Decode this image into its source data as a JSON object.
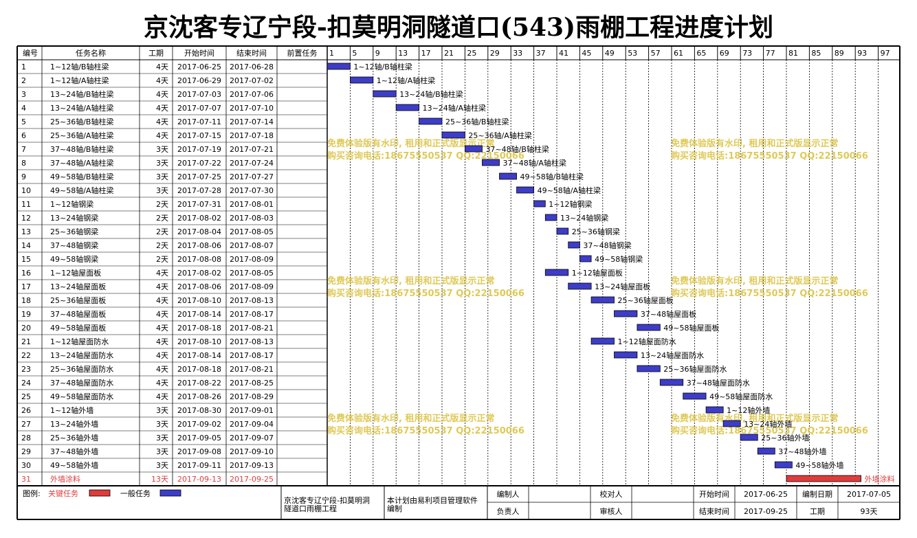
{
  "title": "京沈客专辽宁段-扣莫明洞隧道口(543)雨棚工程进度计划",
  "colors": {
    "normal": "#3d3dc8",
    "critical": "#e03c3c",
    "grid": "#000000",
    "watermark": "#d9bf3a"
  },
  "headers": {
    "id": "编号",
    "name": "任务名称",
    "duration": "工期",
    "start": "开始时间",
    "end": "结束时间",
    "pred": "前置任务"
  },
  "timeline_ticks": [
    "1",
    "5",
    "9",
    "13",
    "17",
    "21",
    "25",
    "29",
    "33",
    "37",
    "41",
    "45",
    "49",
    "53",
    "57",
    "61",
    "65",
    "69",
    "73",
    "77",
    "81",
    "85",
    "89",
    "93",
    "97"
  ],
  "watermark": {
    "line1": "免费体验版有水印, 租用和正式版显示正常",
    "line2": "购买咨询电话:18675550537 QQ:22150066"
  },
  "chart_data": {
    "type": "gantt",
    "x_unit": "day",
    "x_range": [
      1,
      100
    ],
    "tasks": [
      {
        "id": "1",
        "name": "1~12轴/B轴柱梁",
        "duration": "4天",
        "start": "2017-06-25",
        "end": "2017-06-28",
        "start_day": 1,
        "days": 4,
        "critical": false
      },
      {
        "id": "2",
        "name": "1~12轴/A轴柱梁",
        "duration": "4天",
        "start": "2017-06-29",
        "end": "2017-07-02",
        "start_day": 5,
        "days": 4,
        "critical": false
      },
      {
        "id": "3",
        "name": "13~24轴/B轴柱梁",
        "duration": "4天",
        "start": "2017-07-03",
        "end": "2017-07-06",
        "start_day": 9,
        "days": 4,
        "critical": false
      },
      {
        "id": "4",
        "name": "13~24轴/A轴柱梁",
        "duration": "4天",
        "start": "2017-07-07",
        "end": "2017-07-10",
        "start_day": 13,
        "days": 4,
        "critical": false
      },
      {
        "id": "5",
        "name": "25~36轴/B轴柱梁",
        "duration": "4天",
        "start": "2017-07-11",
        "end": "2017-07-14",
        "start_day": 17,
        "days": 4,
        "critical": false
      },
      {
        "id": "6",
        "name": "25~36轴/A轴柱梁",
        "duration": "4天",
        "start": "2017-07-15",
        "end": "2017-07-18",
        "start_day": 21,
        "days": 4,
        "critical": false
      },
      {
        "id": "7",
        "name": "37~48轴/B轴柱梁",
        "duration": "3天",
        "start": "2017-07-19",
        "end": "2017-07-21",
        "start_day": 25,
        "days": 3,
        "critical": false
      },
      {
        "id": "8",
        "name": "37~48轴/A轴柱梁",
        "duration": "3天",
        "start": "2017-07-22",
        "end": "2017-07-24",
        "start_day": 28,
        "days": 3,
        "critical": false
      },
      {
        "id": "9",
        "name": "49~58轴/B轴柱梁",
        "duration": "3天",
        "start": "2017-07-25",
        "end": "2017-07-27",
        "start_day": 31,
        "days": 3,
        "critical": false
      },
      {
        "id": "10",
        "name": "49~58轴/A轴柱梁",
        "duration": "3天",
        "start": "2017-07-28",
        "end": "2017-07-30",
        "start_day": 34,
        "days": 3,
        "critical": false
      },
      {
        "id": "11",
        "name": "1~12轴钢梁",
        "duration": "2天",
        "start": "2017-07-31",
        "end": "2017-08-01",
        "start_day": 37,
        "days": 2,
        "critical": false
      },
      {
        "id": "12",
        "name": "13~24轴钢梁",
        "duration": "2天",
        "start": "2017-08-02",
        "end": "2017-08-03",
        "start_day": 39,
        "days": 2,
        "critical": false
      },
      {
        "id": "13",
        "name": "25~36轴钢梁",
        "duration": "2天",
        "start": "2017-08-04",
        "end": "2017-08-05",
        "start_day": 41,
        "days": 2,
        "critical": false
      },
      {
        "id": "14",
        "name": "37~48轴钢梁",
        "duration": "2天",
        "start": "2017-08-06",
        "end": "2017-08-07",
        "start_day": 43,
        "days": 2,
        "critical": false
      },
      {
        "id": "15",
        "name": "49~58轴钢梁",
        "duration": "2天",
        "start": "2017-08-08",
        "end": "2017-08-09",
        "start_day": 45,
        "days": 2,
        "critical": false
      },
      {
        "id": "16",
        "name": "1~12轴屋面板",
        "duration": "4天",
        "start": "2017-08-02",
        "end": "2017-08-05",
        "start_day": 39,
        "days": 4,
        "critical": false
      },
      {
        "id": "17",
        "name": "13~24轴屋面板",
        "duration": "4天",
        "start": "2017-08-06",
        "end": "2017-08-09",
        "start_day": 43,
        "days": 4,
        "critical": false
      },
      {
        "id": "18",
        "name": "25~36轴屋面板",
        "duration": "4天",
        "start": "2017-08-10",
        "end": "2017-08-13",
        "start_day": 47,
        "days": 4,
        "critical": false
      },
      {
        "id": "19",
        "name": "37~48轴屋面板",
        "duration": "4天",
        "start": "2017-08-14",
        "end": "2017-08-17",
        "start_day": 51,
        "days": 4,
        "critical": false
      },
      {
        "id": "20",
        "name": "49~58轴屋面板",
        "duration": "4天",
        "start": "2017-08-18",
        "end": "2017-08-21",
        "start_day": 55,
        "days": 4,
        "critical": false
      },
      {
        "id": "21",
        "name": "1~12轴屋面防水",
        "duration": "4天",
        "start": "2017-08-10",
        "end": "2017-08-13",
        "start_day": 47,
        "days": 4,
        "critical": false
      },
      {
        "id": "22",
        "name": "13~24轴屋面防水",
        "duration": "4天",
        "start": "2017-08-14",
        "end": "2017-08-17",
        "start_day": 51,
        "days": 4,
        "critical": false
      },
      {
        "id": "23",
        "name": "25~36轴屋面防水",
        "duration": "4天",
        "start": "2017-08-18",
        "end": "2017-08-21",
        "start_day": 55,
        "days": 4,
        "critical": false
      },
      {
        "id": "24",
        "name": "37~48轴屋面防水",
        "duration": "4天",
        "start": "2017-08-22",
        "end": "2017-08-25",
        "start_day": 59,
        "days": 4,
        "critical": false
      },
      {
        "id": "25",
        "name": "49~58轴屋面防水",
        "duration": "4天",
        "start": "2017-08-26",
        "end": "2017-08-29",
        "start_day": 63,
        "days": 4,
        "critical": false
      },
      {
        "id": "26",
        "name": "1~12轴外墙",
        "duration": "3天",
        "start": "2017-08-30",
        "end": "2017-09-01",
        "start_day": 67,
        "days": 3,
        "critical": false
      },
      {
        "id": "27",
        "name": "13~24轴外墙",
        "duration": "3天",
        "start": "2017-09-02",
        "end": "2017-09-04",
        "start_day": 70,
        "days": 3,
        "critical": false
      },
      {
        "id": "28",
        "name": "25~36轴外墙",
        "duration": "3天",
        "start": "2017-09-05",
        "end": "2017-09-07",
        "start_day": 73,
        "days": 3,
        "critical": false
      },
      {
        "id": "29",
        "name": "37~48轴外墙",
        "duration": "3天",
        "start": "2017-09-08",
        "end": "2017-09-10",
        "start_day": 76,
        "days": 3,
        "critical": false
      },
      {
        "id": "30",
        "name": "49~58轴外墙",
        "duration": "3天",
        "start": "2017-09-11",
        "end": "2017-09-13",
        "start_day": 79,
        "days": 3,
        "critical": false
      },
      {
        "id": "31",
        "name": "外墙涂料",
        "duration": "13天",
        "start": "2017-09-13",
        "end": "2017-09-25",
        "start_day": 81,
        "days": 13,
        "critical": true
      }
    ]
  },
  "legend": {
    "label": "图例:",
    "critical": "关键任务",
    "normal": "一般任务"
  },
  "footer": {
    "project": "京沈客专辽宁段-扣莫明洞隧道口雨棚工程",
    "software": "本计划由易利项目管理软件编制",
    "compiler_label": "编制人",
    "proofreader_label": "校对人",
    "start_label": "开始时间",
    "start_value": "2017-06-25",
    "compile_date_label": "编制日期",
    "compile_date_value": "2017-07-05",
    "responsible_label": "负责人",
    "reviewer_label": "审核人",
    "end_label": "结束时间",
    "end_value": "2017-09-25",
    "duration_label": "工期",
    "duration_value": "93天"
  }
}
